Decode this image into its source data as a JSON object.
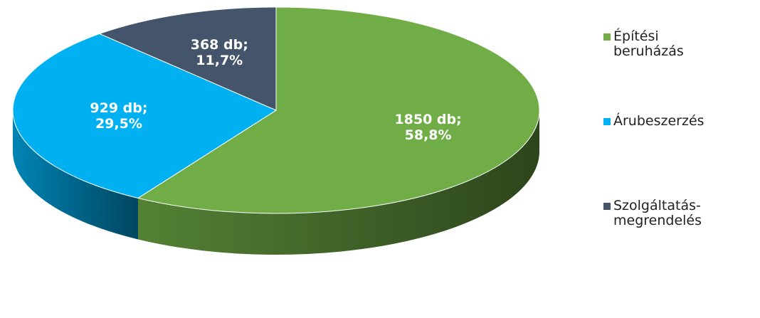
{
  "chart_data": {
    "type": "pie",
    "categories": [
      "Építési beruházás",
      "Árubeszerzés",
      "Szolgáltatás-megrendelés"
    ],
    "values": [
      1850,
      929,
      368
    ],
    "value_labels": [
      "1850 db; 58,8%",
      "929 db; 29,5%",
      "368 db; 11,7%"
    ],
    "colors": [
      "#70ad47",
      "#00b0f0",
      "#44546a"
    ],
    "legend": "right"
  }
}
